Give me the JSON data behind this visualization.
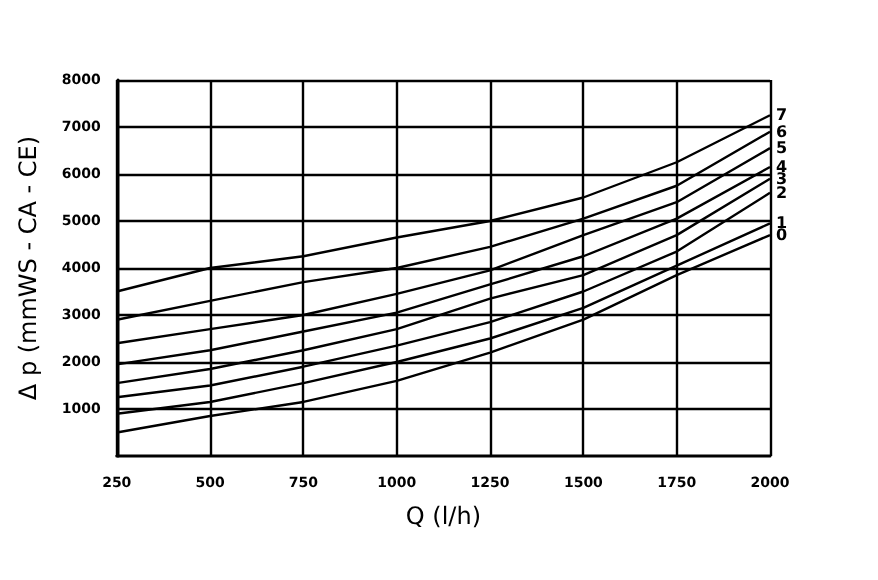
{
  "chart_data": {
    "type": "line",
    "xlabel": "Q (l/h)",
    "ylabel": "Δ p (mmWS - CA - CE)",
    "x": [
      250,
      500,
      750,
      1000,
      1250,
      1500,
      1750,
      2000
    ],
    "series": [
      {
        "name": "0",
        "color": "#000000",
        "values": [
          500,
          850,
          1150,
          1600,
          2200,
          2900,
          3850,
          4700
        ]
      },
      {
        "name": "1",
        "color": "#000000",
        "values": [
          900,
          1150,
          1550,
          2000,
          2500,
          3150,
          4050,
          4950
        ]
      },
      {
        "name": "2",
        "color": "#000000",
        "values": [
          1250,
          1500,
          1900,
          2350,
          2850,
          3500,
          4350,
          5600
        ]
      },
      {
        "name": "3",
        "color": "#000000",
        "values": [
          1550,
          1850,
          2250,
          2700,
          3350,
          3850,
          4700,
          5900
        ]
      },
      {
        "name": "4",
        "color": "#000000",
        "values": [
          1950,
          2250,
          2650,
          3050,
          3650,
          4250,
          5050,
          6150
        ]
      },
      {
        "name": "5",
        "color": "#000000",
        "values": [
          2400,
          2700,
          3000,
          3450,
          3950,
          4700,
          5400,
          6550
        ]
      },
      {
        "name": "6",
        "color": "#000000",
        "values": [
          2900,
          3300,
          3700,
          4000,
          4450,
          5050,
          5750,
          6900
        ]
      },
      {
        "name": "7",
        "color": "#000000",
        "values": [
          3500,
          4000,
          4250,
          4650,
          5000,
          5500,
          6250,
          7250
        ]
      }
    ],
    "xlim": [
      250,
      2000
    ],
    "xticks": [
      250,
      500,
      750,
      1000,
      1250,
      1500,
      1750,
      2000
    ],
    "ylim": [
      0,
      8000
    ],
    "yticks": [
      1000,
      2000,
      3000,
      4000,
      5000,
      6000,
      7000,
      8000
    ],
    "grid": true,
    "legend": false,
    "marker": "none",
    "line_style": "solid"
  }
}
